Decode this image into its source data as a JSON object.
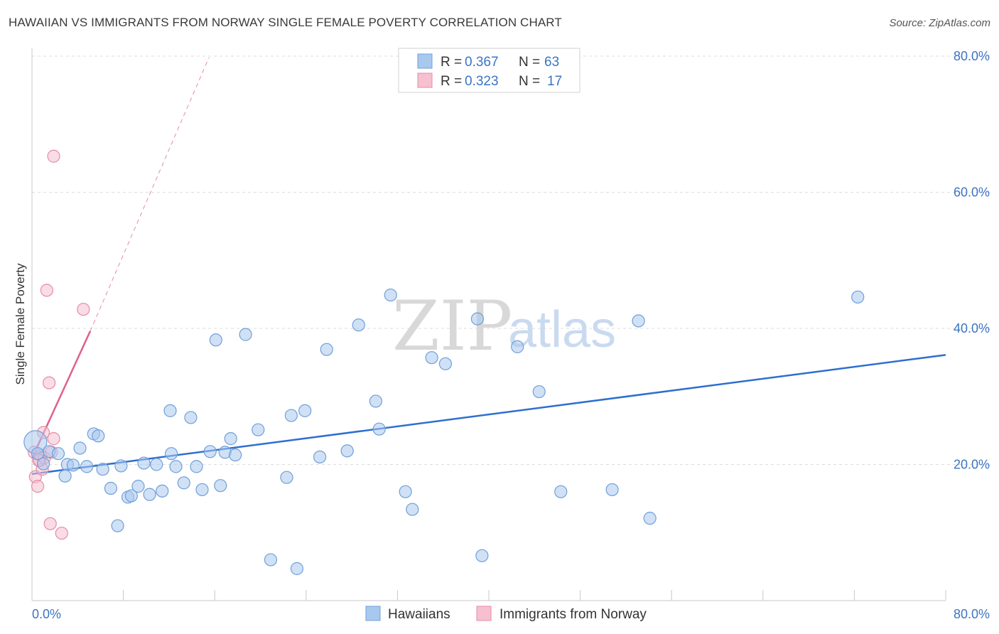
{
  "title": "HAWAIIAN VS IMMIGRANTS FROM NORWAY SINGLE FEMALE POVERTY CORRELATION CHART",
  "source": "Source: ZipAtlas.com",
  "watermark": {
    "zip": "ZIP",
    "atlas": "atlas"
  },
  "colors": {
    "blue_fill": "#a9c8ee",
    "blue_stroke": "#6f9fd8",
    "blue_line": "#2d6fd0",
    "pink_fill": "#f6c0d0",
    "pink_stroke": "#e68aa8",
    "pink_line": "#e0608e",
    "accent_text": "#3b74c4",
    "grid": "#dcdcdc"
  },
  "legend": {
    "rows": [
      {
        "r_label": "R =",
        "r_value": "0.367",
        "n_label": "N =",
        "n_value": "63"
      },
      {
        "r_label": "R =",
        "r_value": "0.323",
        "n_label": "N =",
        "n_value": "17"
      }
    ]
  },
  "bottom_legend": [
    "Hawaiians",
    "Immigrants from Norway"
  ],
  "chart_data": {
    "type": "scatter",
    "ylabel": "Single Female Poverty",
    "xlim": [
      0,
      80
    ],
    "ylim": [
      0,
      80
    ],
    "x_tick_labels": [
      "0.0%",
      "80.0%"
    ],
    "y_ticks": [
      20,
      40,
      60,
      80
    ],
    "y_tick_labels": [
      "20.0%",
      "40.0%",
      "60.0%",
      "80.0%"
    ],
    "grid": true,
    "series": [
      {
        "name": "Hawaiians",
        "color": "#a9c8ee",
        "points": [
          [
            0.3,
            23.3
          ],
          [
            0.5,
            21.6
          ],
          [
            1.0,
            20.1
          ],
          [
            1.5,
            21.9
          ],
          [
            2.3,
            21.6
          ],
          [
            2.9,
            18.3
          ],
          [
            3.1,
            20.0
          ],
          [
            3.6,
            19.9
          ],
          [
            4.2,
            22.4
          ],
          [
            4.8,
            19.7
          ],
          [
            5.4,
            24.5
          ],
          [
            5.8,
            24.2
          ],
          [
            6.2,
            19.3
          ],
          [
            6.9,
            16.5
          ],
          [
            7.5,
            11.0
          ],
          [
            7.8,
            19.8
          ],
          [
            8.4,
            15.2
          ],
          [
            8.7,
            15.4
          ],
          [
            9.3,
            16.8
          ],
          [
            9.8,
            20.2
          ],
          [
            10.3,
            15.6
          ],
          [
            10.9,
            20.0
          ],
          [
            11.4,
            16.1
          ],
          [
            12.1,
            27.9
          ],
          [
            12.2,
            21.6
          ],
          [
            12.6,
            19.7
          ],
          [
            13.3,
            17.3
          ],
          [
            13.9,
            26.9
          ],
          [
            14.4,
            19.7
          ],
          [
            14.9,
            16.3
          ],
          [
            15.6,
            21.9
          ],
          [
            16.1,
            38.3
          ],
          [
            16.5,
            16.9
          ],
          [
            16.9,
            21.8
          ],
          [
            17.4,
            23.8
          ],
          [
            17.8,
            21.4
          ],
          [
            18.7,
            39.1
          ],
          [
            19.8,
            25.1
          ],
          [
            20.9,
            6.0
          ],
          [
            22.3,
            18.1
          ],
          [
            22.7,
            27.2
          ],
          [
            23.2,
            4.7
          ],
          [
            23.9,
            27.9
          ],
          [
            25.2,
            21.1
          ],
          [
            25.8,
            36.9
          ],
          [
            27.6,
            22.0
          ],
          [
            28.6,
            40.5
          ],
          [
            30.1,
            29.3
          ],
          [
            30.4,
            25.2
          ],
          [
            31.4,
            44.9
          ],
          [
            32.7,
            16.0
          ],
          [
            33.3,
            13.4
          ],
          [
            35.0,
            35.7
          ],
          [
            36.2,
            34.8
          ],
          [
            39.0,
            41.4
          ],
          [
            39.4,
            6.6
          ],
          [
            42.5,
            37.3
          ],
          [
            44.4,
            30.7
          ],
          [
            46.3,
            16.0
          ],
          [
            50.8,
            16.3
          ],
          [
            53.1,
            41.1
          ],
          [
            54.1,
            12.1
          ],
          [
            72.3,
            44.6
          ]
        ],
        "trend": {
          "x": [
            0,
            80
          ],
          "y": [
            18.6,
            36.1
          ]
        }
      },
      {
        "name": "Immigrants from Norway",
        "color": "#f6c0d0",
        "points": [
          [
            0.2,
            21.8
          ],
          [
            0.3,
            18.2
          ],
          [
            0.5,
            16.8
          ],
          [
            0.7,
            20.6
          ],
          [
            0.8,
            21.3
          ],
          [
            0.9,
            19.3
          ],
          [
            1.0,
            24.7
          ],
          [
            1.1,
            21.0
          ],
          [
            1.3,
            45.6
          ],
          [
            1.5,
            32.0
          ],
          [
            1.6,
            11.3
          ],
          [
            1.7,
            21.8
          ],
          [
            1.9,
            23.8
          ],
          [
            1.9,
            65.3
          ],
          [
            2.6,
            9.9
          ],
          [
            4.5,
            42.8
          ],
          [
            0.6,
            20.6
          ]
        ],
        "trend": {
          "x": [
            0,
            5.1
          ],
          "y": [
            20.9,
            39.6
          ]
        },
        "trend_extension": {
          "x": [
            5.1,
            15.5
          ],
          "y": [
            39.6,
            79.8
          ]
        }
      }
    ]
  }
}
